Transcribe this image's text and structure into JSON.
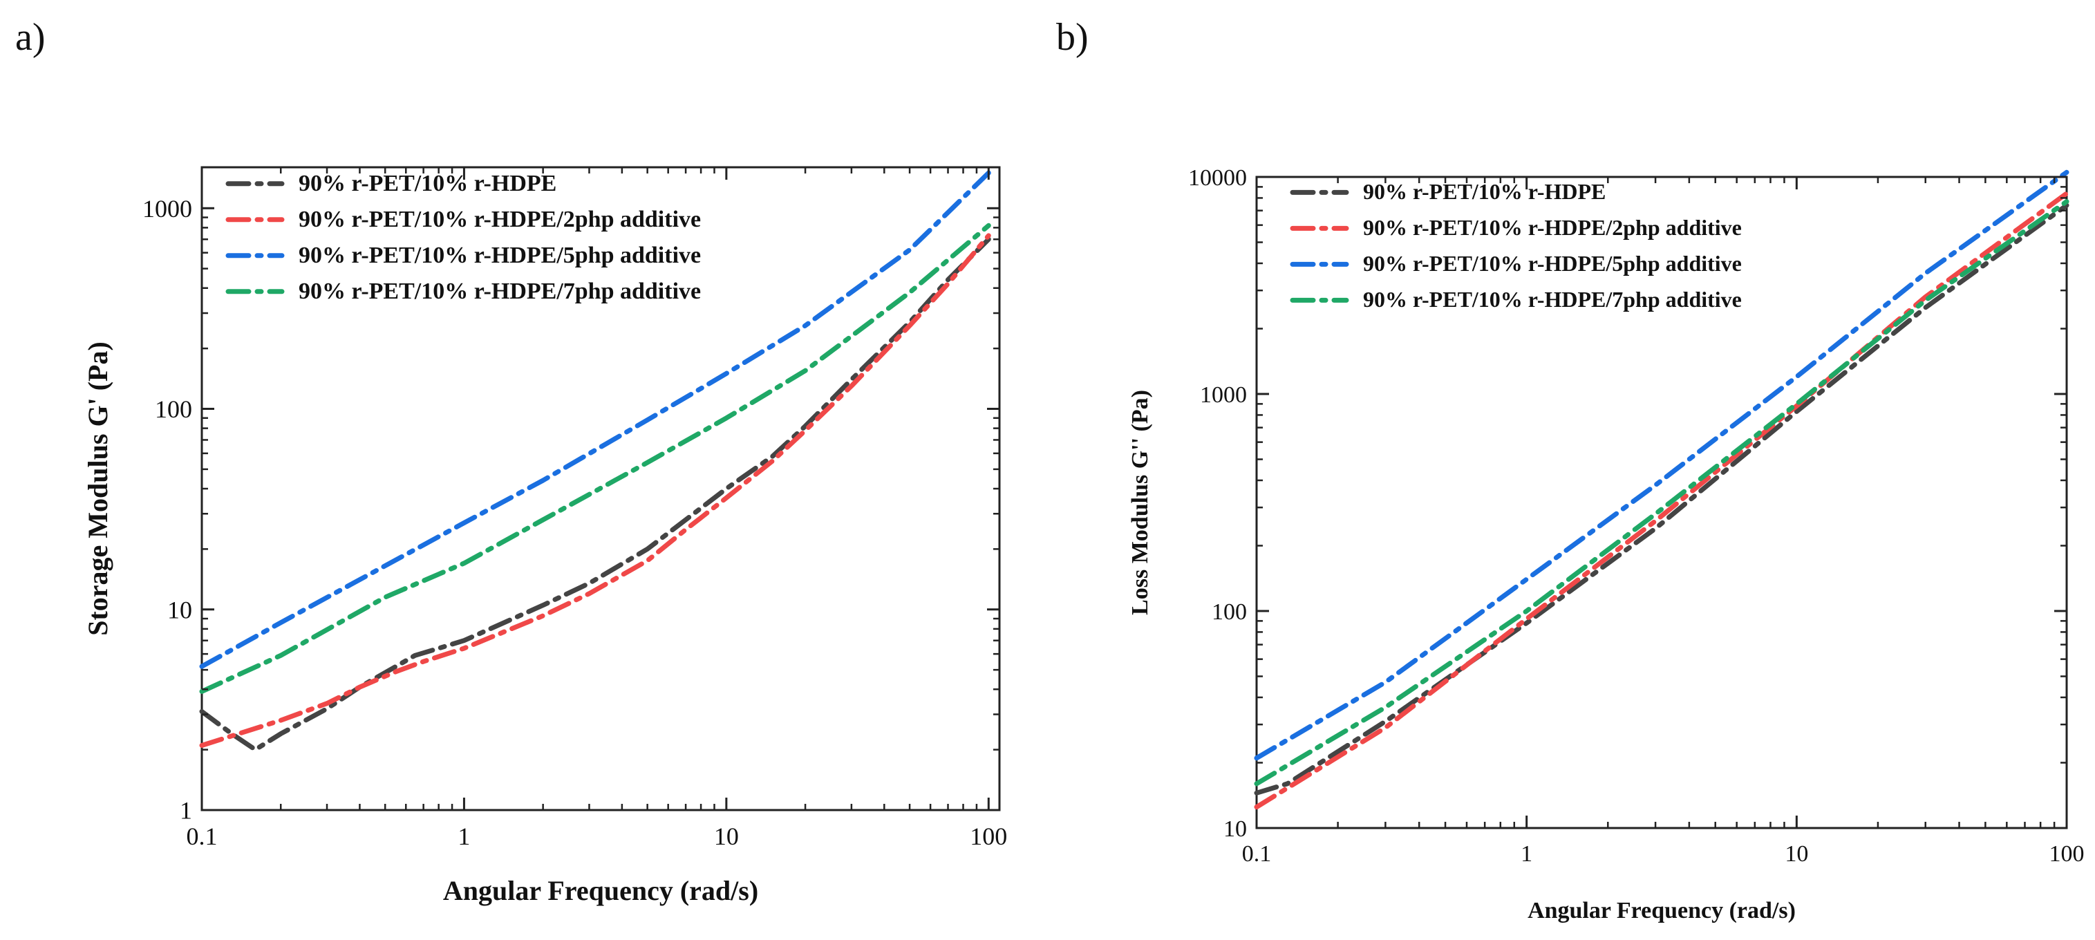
{
  "panels": [
    {
      "label": "a)"
    },
    {
      "label": "b)"
    }
  ],
  "chart_data": [
    {
      "type": "line",
      "x_scale": "log",
      "y_scale": "log",
      "xlabel": "Angular Frequency (rad/s)",
      "ylabel": "Storage Modulus G' (Pa)",
      "xlim": [
        0.1,
        110
      ],
      "ylim": [
        1,
        1600
      ],
      "x_ticks": [
        0.1,
        1,
        10,
        100
      ],
      "x_tick_labels": [
        "0.1",
        "1",
        "10",
        "100"
      ],
      "y_ticks": [
        1,
        10,
        100,
        1000
      ],
      "y_tick_labels": [
        "1",
        "10",
        "100",
        "1000"
      ],
      "legend_position": "top-left",
      "series": [
        {
          "name": "90% r-PET/10% r-HDPE",
          "color": "#444444",
          "points": [
            [
              0.1,
              3.1
            ],
            [
              0.13,
              2.4
            ],
            [
              0.16,
              2.0
            ],
            [
              0.2,
              2.4
            ],
            [
              0.3,
              3.2
            ],
            [
              0.4,
              4.1
            ],
            [
              0.55,
              5.2
            ],
            [
              0.65,
              5.9
            ],
            [
              0.8,
              6.4
            ],
            [
              1,
              7.0
            ],
            [
              2,
              10.5
            ],
            [
              3,
              13.5
            ],
            [
              5,
              20
            ],
            [
              7,
              28
            ],
            [
              10,
              40
            ],
            [
              15,
              58
            ],
            [
              20,
              82
            ],
            [
              30,
              140
            ],
            [
              50,
              270
            ],
            [
              70,
              440
            ],
            [
              100,
              700
            ]
          ]
        },
        {
          "name": "90% r-PET/10% r-HDPE/2php additive",
          "color": "#f04848",
          "points": [
            [
              0.1,
              2.1
            ],
            [
              0.2,
              2.8
            ],
            [
              0.3,
              3.4
            ],
            [
              0.4,
              4.1
            ],
            [
              0.55,
              4.9
            ],
            [
              0.7,
              5.5
            ],
            [
              1,
              6.4
            ],
            [
              2,
              9.3
            ],
            [
              3,
              12.0
            ],
            [
              5,
              17.5
            ],
            [
              7,
              25
            ],
            [
              10,
              36
            ],
            [
              15,
              55
            ],
            [
              20,
              78
            ],
            [
              30,
              130
            ],
            [
              50,
              260
            ],
            [
              70,
              420
            ],
            [
              100,
              730
            ]
          ]
        },
        {
          "name": "90% r-PET/10% r-HDPE/5php additive",
          "color": "#1a6fe0",
          "points": [
            [
              0.1,
              5.2
            ],
            [
              0.2,
              8.6
            ],
            [
              0.5,
              16.5
            ],
            [
              1,
              27
            ],
            [
              2,
              44
            ],
            [
              5,
              88
            ],
            [
              10,
              150
            ],
            [
              20,
              260
            ],
            [
              50,
              620
            ],
            [
              100,
              1500
            ]
          ]
        },
        {
          "name": "90% r-PET/10% r-HDPE/7php additive",
          "color": "#1fa866",
          "points": [
            [
              0.1,
              3.9
            ],
            [
              0.2,
              5.9
            ],
            [
              0.5,
              11.5
            ],
            [
              1,
              17
            ],
            [
              2,
              28
            ],
            [
              5,
              54
            ],
            [
              10,
              90
            ],
            [
              20,
              155
            ],
            [
              50,
              380
            ],
            [
              100,
              820
            ]
          ]
        }
      ]
    },
    {
      "type": "line",
      "x_scale": "log",
      "y_scale": "log",
      "xlabel": "Angular Frequency (rad/s)",
      "ylabel": "Loss Modulus G'' (Pa)",
      "xlim": [
        0.1,
        100
      ],
      "ylim": [
        10,
        10000
      ],
      "x_ticks": [
        0.1,
        1,
        10,
        100
      ],
      "x_tick_labels": [
        "0.1",
        "1",
        "10",
        "100"
      ],
      "y_ticks": [
        10,
        100,
        1000,
        10000
      ],
      "y_tick_labels": [
        "10",
        "100",
        "1000",
        "10000"
      ],
      "legend_position": "top-left",
      "series": [
        {
          "name": "90% r-PET/10% r-HDPE",
          "color": "#444444",
          "points": [
            [
              0.1,
              14.5
            ],
            [
              0.13,
              16
            ],
            [
              0.3,
              31
            ],
            [
              1,
              88
            ],
            [
              3,
              240
            ],
            [
              10,
              830
            ],
            [
              30,
              2500
            ],
            [
              100,
              7400
            ]
          ]
        },
        {
          "name": "90% r-PET/10% r-HDPE/2php additive",
          "color": "#f04848",
          "points": [
            [
              0.1,
              12.5
            ],
            [
              0.3,
              29
            ],
            [
              1,
              92
            ],
            [
              3,
              260
            ],
            [
              10,
              880
            ],
            [
              30,
              2800
            ],
            [
              100,
              8400
            ]
          ]
        },
        {
          "name": "90% r-PET/10% r-HDPE/5php additive",
          "color": "#1a6fe0",
          "points": [
            [
              0.1,
              21
            ],
            [
              0.3,
              47
            ],
            [
              1,
              140
            ],
            [
              3,
              380
            ],
            [
              10,
              1200
            ],
            [
              30,
              3600
            ],
            [
              100,
              10500
            ]
          ]
        },
        {
          "name": "90% r-PET/10% r-HDPE/7php additive",
          "color": "#1fa866",
          "points": [
            [
              0.1,
              16
            ],
            [
              0.3,
              36
            ],
            [
              1,
              100
            ],
            [
              3,
              280
            ],
            [
              10,
              900
            ],
            [
              30,
              2700
            ],
            [
              100,
              7700
            ]
          ]
        }
      ]
    }
  ]
}
